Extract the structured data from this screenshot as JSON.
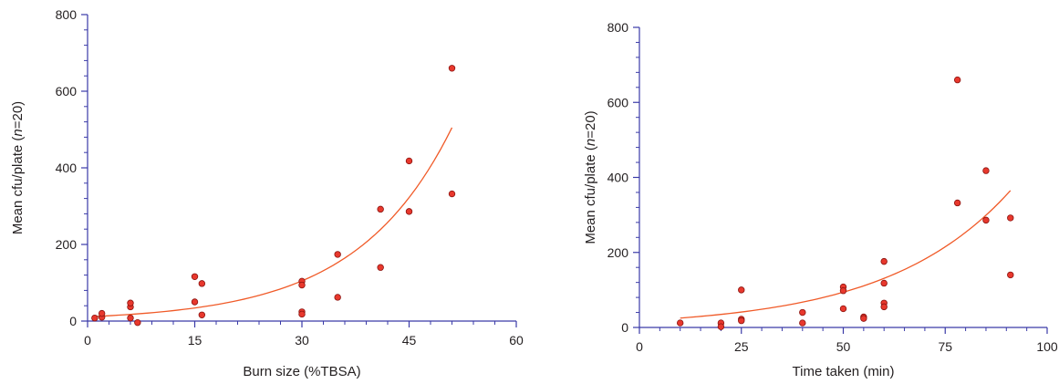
{
  "colors": {
    "axis": "#3a3aa8",
    "point_fill": "#e8382d",
    "point_stroke": "#8b1410",
    "fit_line": "#f05a28"
  },
  "chart_data": [
    {
      "type": "scatter",
      "xlabel": "Burn size (%TBSA)",
      "ylabel_parts": [
        "Mean cfu/plate (",
        "n",
        "=20)"
      ],
      "xlim": [
        0,
        60
      ],
      "ylim": [
        0,
        800
      ],
      "xticks": [
        0,
        15,
        30,
        45,
        60
      ],
      "yticks": [
        0,
        200,
        400,
        600,
        800
      ],
      "xminor": 5,
      "yminor": 5,
      "trendline": {
        "type": "exponential",
        "x": [
          1,
          51
        ],
        "y": [
          12,
          505
        ]
      },
      "points": [
        {
          "x": 1,
          "y": 8
        },
        {
          "x": 2,
          "y": 10
        },
        {
          "x": 2,
          "y": 20
        },
        {
          "x": 6,
          "y": 8
        },
        {
          "x": 6,
          "y": 37
        },
        {
          "x": 6,
          "y": 47
        },
        {
          "x": 7,
          "y": -4
        },
        {
          "x": 15,
          "y": 116
        },
        {
          "x": 15,
          "y": 50
        },
        {
          "x": 16,
          "y": 98
        },
        {
          "x": 16,
          "y": 16
        },
        {
          "x": 30,
          "y": 104
        },
        {
          "x": 30,
          "y": 94
        },
        {
          "x": 30,
          "y": 24
        },
        {
          "x": 30,
          "y": 18
        },
        {
          "x": 35,
          "y": 174
        },
        {
          "x": 35,
          "y": 62
        },
        {
          "x": 41,
          "y": 292
        },
        {
          "x": 41,
          "y": 140
        },
        {
          "x": 45,
          "y": 418
        },
        {
          "x": 45,
          "y": 286
        },
        {
          "x": 51,
          "y": 660
        },
        {
          "x": 51,
          "y": 332
        }
      ]
    },
    {
      "type": "scatter",
      "xlabel": "Time taken (min)",
      "ylabel_parts": [
        "Mean cfu/plate (",
        "n",
        "=20)"
      ],
      "xlim": [
        0,
        100
      ],
      "ylim": [
        0,
        800
      ],
      "xticks": [
        0,
        25,
        50,
        75,
        100
      ],
      "yticks": [
        0,
        200,
        400,
        600,
        800
      ],
      "xminor": 5,
      "yminor": 5,
      "trendline": {
        "type": "exponential",
        "x": [
          10,
          91
        ],
        "y": [
          25,
          365
        ]
      },
      "points": [
        {
          "x": 10,
          "y": 12
        },
        {
          "x": 20,
          "y": 12
        },
        {
          "x": 20,
          "y": 2
        },
        {
          "x": 25,
          "y": 100
        },
        {
          "x": 25,
          "y": 22
        },
        {
          "x": 25,
          "y": 18
        },
        {
          "x": 40,
          "y": 40
        },
        {
          "x": 40,
          "y": 12
        },
        {
          "x": 50,
          "y": 108
        },
        {
          "x": 50,
          "y": 98
        },
        {
          "x": 50,
          "y": 50
        },
        {
          "x": 55,
          "y": 28
        },
        {
          "x": 55,
          "y": 24
        },
        {
          "x": 60,
          "y": 176
        },
        {
          "x": 60,
          "y": 118
        },
        {
          "x": 60,
          "y": 65
        },
        {
          "x": 60,
          "y": 55
        },
        {
          "x": 78,
          "y": 660
        },
        {
          "x": 78,
          "y": 332
        },
        {
          "x": 85,
          "y": 418
        },
        {
          "x": 85,
          "y": 286
        },
        {
          "x": 91,
          "y": 292
        },
        {
          "x": 91,
          "y": 140
        }
      ]
    }
  ]
}
